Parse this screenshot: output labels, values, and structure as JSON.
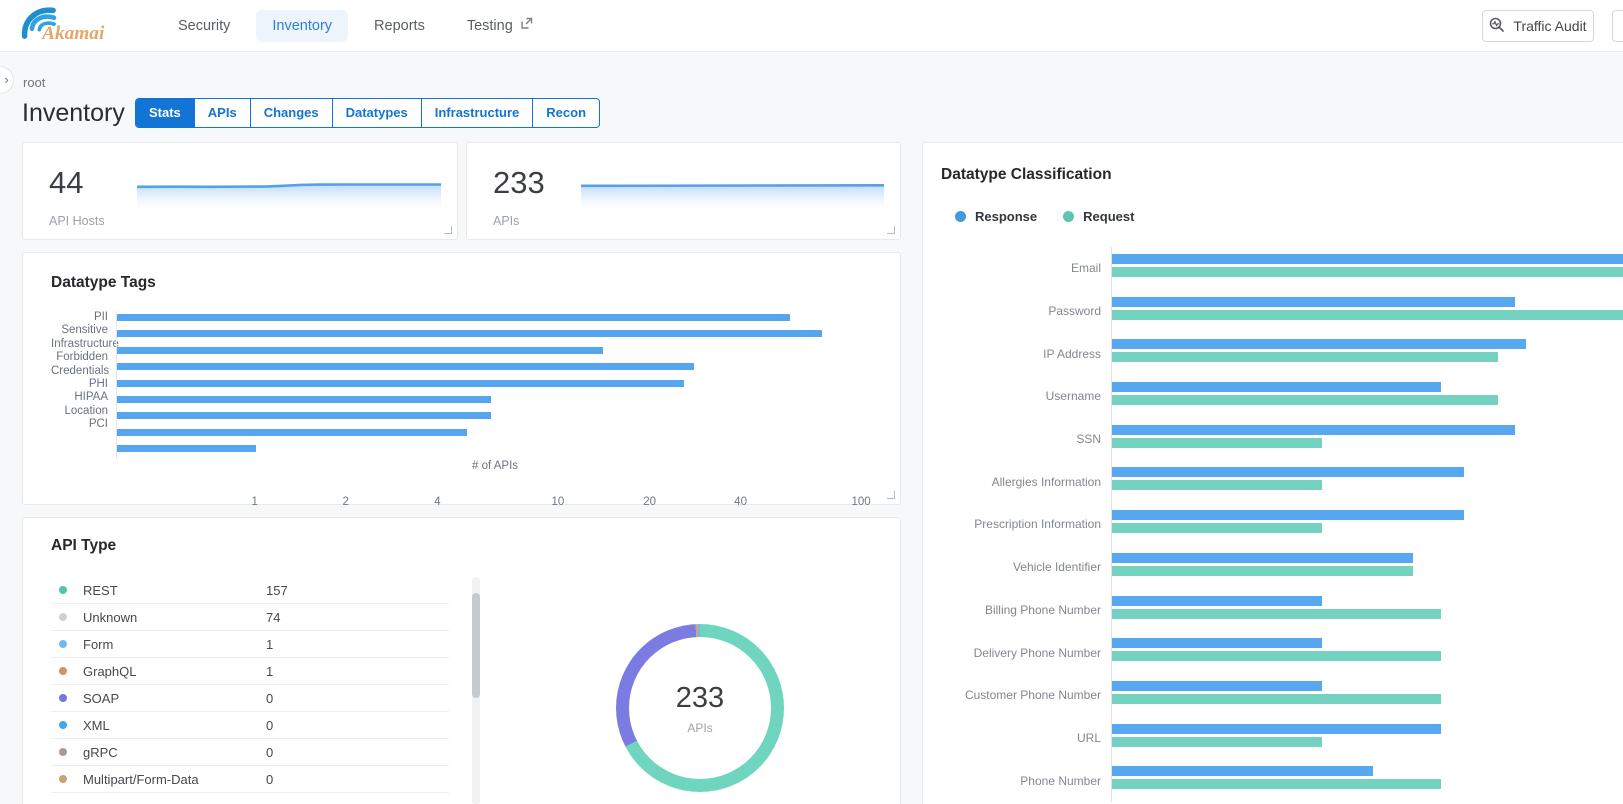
{
  "topbar": {
    "brand": "Akamai",
    "nav": {
      "items": [
        {
          "label": "Security"
        },
        {
          "label": "Inventory",
          "active": true
        },
        {
          "label": "Reports"
        },
        {
          "label": "Testing",
          "external": true
        }
      ]
    },
    "traffic_audit_label": "Traffic Audit"
  },
  "breadcrumb": "root",
  "page_title": "Inventory",
  "inventory_tabs": {
    "items": [
      "Stats",
      "APIs",
      "Changes",
      "Datatypes",
      "Infrastructure",
      "Recon"
    ],
    "active_index": 0,
    "accent": "#1274d4"
  },
  "stat_cards": [
    {
      "value": "44",
      "label": "API Hosts"
    },
    {
      "value": "233",
      "label": "APIs"
    }
  ],
  "colors": {
    "bar_blue": "#57a8f0",
    "bar_teal": "#76d2c0",
    "tag_bar_blue": "#55a6ef",
    "sparkline": "#55a1e8",
    "donut_teal": "#6fd5be",
    "donut_purple": "#7b7ce1"
  },
  "chart_data": [
    {
      "id": "datatype_tags",
      "type": "bar",
      "orientation": "horizontal",
      "scale": "log",
      "title": "Datatype Tags",
      "categories": [
        "PII",
        "Sensitive",
        "Infrastructure",
        "Forbidden",
        "Credentials",
        "PHI",
        "HIPAA",
        "Location",
        "PCI"
      ],
      "values": [
        58,
        74,
        14,
        28,
        26,
        6,
        6,
        5,
        1
      ],
      "xlabel": "# of APIs",
      "x_ticks": [
        1,
        2,
        4,
        10,
        20,
        40,
        100
      ],
      "x_domain": [
        0.35,
        110
      ],
      "bar_color": "#55a6ef",
      "grid": false
    },
    {
      "id": "api_type",
      "type": "pie",
      "title": "API Type",
      "center_value": "233",
      "center_label": "APIs",
      "items": [
        {
          "label": "REST",
          "value": 157,
          "dot_color": "#52c5ac",
          "donut_color": "#6fd5be"
        },
        {
          "label": "Unknown",
          "value": 74,
          "dot_color": "#cdd0d4",
          "donut_color": "#7b7ce1"
        },
        {
          "label": "Form",
          "value": 1,
          "dot_color": "#6fb9f2",
          "donut_color": "#6fb9f2"
        },
        {
          "label": "GraphQL",
          "value": 1,
          "dot_color": "#ce9468",
          "donut_color": "#d4a27c"
        },
        {
          "label": "SOAP",
          "value": 0,
          "dot_color": "#7476de"
        },
        {
          "label": "XML",
          "value": 0,
          "dot_color": "#3fa7ee"
        },
        {
          "label": "gRPC",
          "value": 0,
          "dot_color": "#a89a92"
        },
        {
          "label": "Multipart/Form-Data",
          "value": 0,
          "dot_color": "#c9a17b"
        }
      ],
      "donut_order": [
        "REST",
        "Unknown",
        "GraphQL",
        "Form"
      ]
    },
    {
      "id": "datatype_classification",
      "type": "bar",
      "orientation": "horizontal",
      "grouped": true,
      "title": "Datatype Classification",
      "legend": [
        {
          "name": "Response",
          "color": "#429add"
        },
        {
          "name": "Request",
          "color": "#5ec6b0"
        }
      ],
      "legend_position": "top-left",
      "categories": [
        "Email",
        "Password",
        "IP Address",
        "Username",
        "SSN",
        "Allergies Information",
        "Prescription Information",
        "Vehicle Identifier",
        "Billing Phone Number",
        "Delivery Phone Number",
        "Customer Phone Number",
        "URL",
        "Phone Number"
      ],
      "series": [
        {
          "name": "Response",
          "color": "#57a8f0",
          "values_pct_of_plot_width": [
            100,
            71,
            73,
            58,
            71,
            62,
            62,
            53,
            37,
            37,
            37,
            58,
            46
          ]
        },
        {
          "name": "Request",
          "color": "#76d2c0",
          "values_pct_of_plot_width": [
            100,
            100,
            68,
            68,
            37,
            37,
            37,
            53,
            58,
            58,
            58,
            37,
            58
          ]
        }
      ]
    }
  ]
}
